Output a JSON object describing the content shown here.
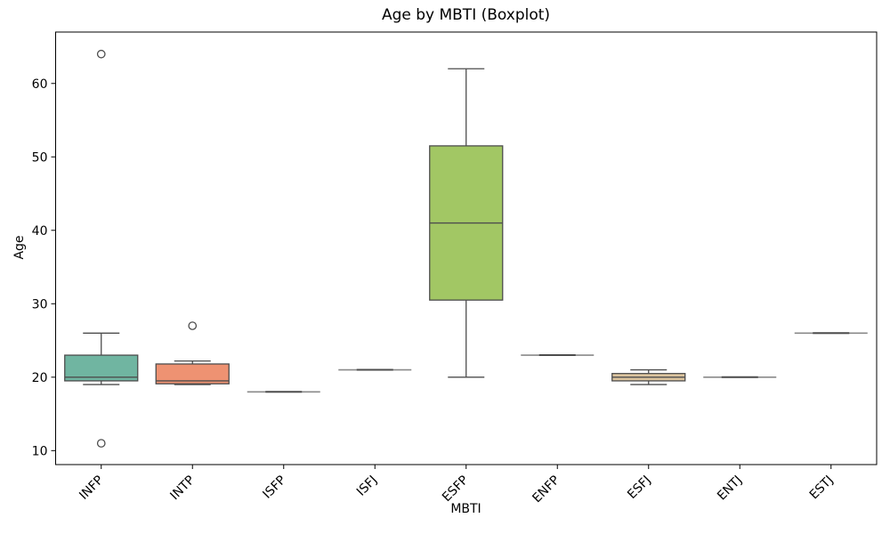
{
  "chart_data": {
    "type": "boxplot",
    "title": "Age by MBTI (Boxplot)",
    "xlabel": "MBTI",
    "ylabel": "Age",
    "ylim": [
      8.1,
      67.0
    ],
    "yticks": [
      10,
      20,
      30,
      40,
      50,
      60
    ],
    "grid": false,
    "legend": null,
    "line_color": "#4d4d4d",
    "flat_line_light": "#8a8a8a",
    "categories": [
      "INFP",
      "INTP",
      "ISFP",
      "ISFJ",
      "ESFP",
      "ENFP",
      "ESFJ",
      "ENTJ",
      "ESTJ"
    ],
    "boxes": [
      {
        "category": "INFP",
        "whisker_low": 19,
        "q1": 19.5,
        "median": 20,
        "q3": 23,
        "whisker_high": 26,
        "outliers": [
          11,
          64
        ],
        "color": "#70b5a1"
      },
      {
        "category": "INTP",
        "whisker_low": 19,
        "q1": 19.1,
        "median": 19.5,
        "q3": 21.8,
        "whisker_high": 22.2,
        "outliers": [
          27
        ],
        "color": "#ee9272"
      },
      {
        "category": "ISFP",
        "whisker_low": 18,
        "q1": 18,
        "median": 18,
        "q3": 18,
        "whisker_high": 18,
        "outliers": [],
        "color": "#8fa2c4"
      },
      {
        "category": "ISFJ",
        "whisker_low": 21,
        "q1": 21,
        "median": 21,
        "q3": 21,
        "whisker_high": 21,
        "outliers": [],
        "color": "#dc95be"
      },
      {
        "category": "ESFP",
        "whisker_low": 20,
        "q1": 30.5,
        "median": 41,
        "q3": 51.5,
        "whisker_high": 62,
        "outliers": [],
        "color": "#a2c764"
      },
      {
        "category": "ENFP",
        "whisker_low": 23,
        "q1": 23,
        "median": 23,
        "q3": 23,
        "whisker_high": 23,
        "outliers": [],
        "color": "#e3cf57"
      },
      {
        "category": "ESFJ",
        "whisker_low": 19,
        "q1": 19.5,
        "median": 20,
        "q3": 20.5,
        "whisker_high": 21,
        "outliers": [],
        "color": "#dcc49e"
      },
      {
        "category": "ENTJ",
        "whisker_low": 20,
        "q1": 20,
        "median": 20,
        "q3": 20,
        "whisker_high": 20,
        "outliers": [],
        "color": "#b3b3b3"
      },
      {
        "category": "ESTJ",
        "whisker_low": 26,
        "q1": 26,
        "median": 26,
        "q3": 26,
        "whisker_high": 26,
        "outliers": [],
        "color": "#70b5a1"
      }
    ]
  }
}
